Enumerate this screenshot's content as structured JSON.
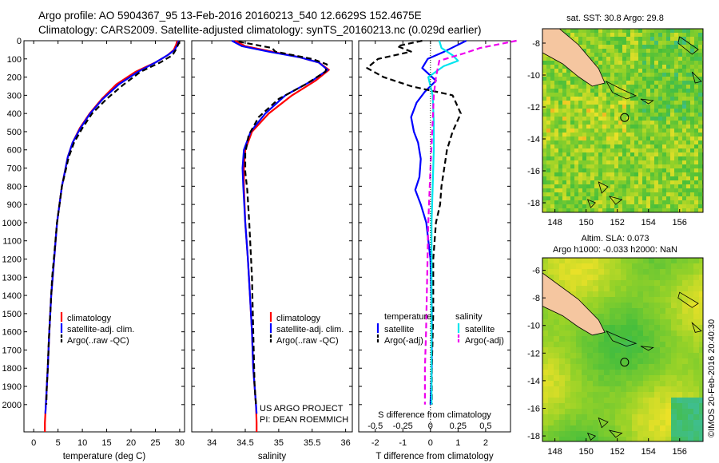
{
  "header": {
    "line1": "Argo profile: AO 5904367_95 13-Feb-2016 20160213_540 12.6629S 152.4675E",
    "line2": "Climatology: CARS2009. Satellite-adjusted climatology: synTS_20160213.nc (0.029d earlier)"
  },
  "colors": {
    "climatology": "#ff0000",
    "satellite": "#0000ff",
    "argo": "#000000",
    "sat_salinity": "#00e5ee",
    "argo_salinity": "#ee00ee",
    "land": "#f5c6a0",
    "ocean_base": "#44bb33"
  },
  "chart_data": [
    {
      "type": "line",
      "name": "temperature",
      "xlabel": "temperature (deg C)",
      "xlim": [
        -2,
        31
      ],
      "xticks": [
        0,
        5,
        10,
        15,
        20,
        25,
        30
      ],
      "xtick_labels": [
        "0",
        "5",
        "10",
        "15",
        "20",
        "25",
        "30"
      ],
      "ylim": [
        2150,
        0
      ],
      "yticks": [
        0,
        100,
        200,
        300,
        400,
        500,
        600,
        700,
        800,
        900,
        1000,
        1100,
        1200,
        1300,
        1400,
        1500,
        1600,
        1700,
        1800,
        1900,
        2000
      ],
      "ytick_labels": [
        "0",
        "100",
        "200",
        "300",
        "400",
        "500",
        "600",
        "700",
        "800",
        "900",
        "1000",
        "1100",
        "1200",
        "1300",
        "1400",
        "1500",
        "1600",
        "1700",
        "1800",
        "1900",
        "2000"
      ],
      "legend": [
        "climatology",
        "satellite-adj. clim.",
        "Argo(..raw -QC)"
      ],
      "series": [
        {
          "name": "climatology",
          "color": "#ff0000",
          "dash": false,
          "x": [
            29.5,
            29.3,
            28.8,
            27.5,
            25,
            21,
            17,
            14,
            11.5,
            9.5,
            8,
            7,
            6.4,
            5.8,
            4.8,
            4.2,
            3.6,
            3.2,
            2.9,
            2.7,
            2.5,
            2.4,
            2.3,
            2.3
          ],
          "depth": [
            0,
            20,
            50,
            80,
            120,
            170,
            240,
            320,
            400,
            480,
            560,
            640,
            720,
            800,
            1000,
            1200,
            1400,
            1600,
            1800,
            1900,
            2000,
            2050,
            2100,
            2150
          ]
        },
        {
          "name": "satellite-adj. clim.",
          "color": "#0000ff",
          "dash": false,
          "x": [
            29.8,
            29.6,
            29,
            27.5,
            25,
            21.5,
            17.5,
            14.2,
            11.6,
            9.6,
            8,
            7,
            6.4,
            5.8,
            4.8,
            4.2,
            3.6,
            3.2,
            2.9,
            2.7,
            2.5,
            2.4
          ],
          "depth": [
            0,
            20,
            50,
            80,
            120,
            170,
            240,
            320,
            400,
            480,
            560,
            640,
            720,
            800,
            1000,
            1200,
            1400,
            1600,
            1800,
            1900,
            2000,
            2050
          ]
        },
        {
          "name": "Argo(..raw -QC)",
          "color": "#000000",
          "dash": true,
          "x": [
            30,
            29.7,
            29.2,
            28.5,
            26,
            22,
            18.5,
            15,
            12,
            10,
            8.3,
            7.2,
            6.5,
            5.8,
            5.3,
            4.8,
            4.3,
            3.8,
            3.4,
            3.1,
            2.9,
            2.7,
            2.6
          ],
          "depth": [
            5,
            20,
            50,
            80,
            120,
            170,
            240,
            320,
            400,
            480,
            560,
            640,
            720,
            800,
            900,
            1000,
            1150,
            1300,
            1500,
            1650,
            1800,
            1900,
            2000
          ]
        }
      ]
    },
    {
      "type": "line",
      "name": "salinity",
      "xlabel": "salinity",
      "xlim": [
        33.7,
        36.1
      ],
      "xticks": [
        34,
        34.5,
        35,
        35.5,
        36
      ],
      "xtick_labels": [
        "34",
        "34.5",
        "35",
        "35.5",
        "36"
      ],
      "ylim": [
        2150,
        0
      ],
      "legend": [
        "climatology",
        "satellite-adj. clim.",
        "Argo(..raw -QC)"
      ],
      "annotation": [
        "US ARGO PROJECT",
        "PI: DEAN ROEMMICH"
      ],
      "series": [
        {
          "name": "climatology",
          "color": "#ff0000",
          "dash": false,
          "x": [
            34.35,
            34.5,
            34.9,
            35.3,
            35.6,
            35.75,
            35.55,
            35.2,
            34.85,
            34.6,
            34.5,
            34.48,
            34.48,
            34.5,
            34.54,
            34.57,
            34.6,
            34.62,
            34.64,
            34.66,
            34.67,
            34.67
          ],
          "depth": [
            0,
            30,
            60,
            90,
            120,
            160,
            220,
            300,
            400,
            500,
            600,
            700,
            800,
            1000,
            1200,
            1400,
            1600,
            1800,
            1900,
            2000,
            2100,
            2150
          ]
        },
        {
          "name": "satellite-adj. clim.",
          "color": "#0000ff",
          "dash": false,
          "x": [
            34.3,
            34.45,
            34.85,
            35.3,
            35.6,
            35.73,
            35.5,
            35.1,
            34.8,
            34.58,
            34.48,
            34.46,
            34.47,
            34.5,
            34.54,
            34.57,
            34.6,
            34.62,
            34.64,
            34.66,
            34.67
          ],
          "depth": [
            0,
            30,
            60,
            90,
            120,
            160,
            220,
            300,
            400,
            500,
            600,
            700,
            800,
            1000,
            1200,
            1400,
            1600,
            1800,
            1900,
            2000,
            2050
          ]
        },
        {
          "name": "Argo(..raw -QC)",
          "color": "#000000",
          "dash": true,
          "x": [
            34.4,
            34.9,
            34.95,
            35.5,
            35.72,
            35.7,
            35.4,
            35.0,
            34.7,
            34.55,
            34.5,
            34.5,
            34.53,
            34.56,
            34.6,
            34.62,
            34.64,
            34.66
          ],
          "depth": [
            5,
            40,
            60,
            100,
            130,
            170,
            240,
            320,
            420,
            520,
            620,
            720,
            820,
            1000,
            1300,
            1600,
            1900,
            2000
          ]
        }
      ]
    },
    {
      "type": "line",
      "name": "difference",
      "xlabel": "T difference from climatology",
      "x2label": "S difference from climatology",
      "xlim": [
        -2.6,
        2.9
      ],
      "xticks": [
        -2,
        -1,
        0,
        1,
        2
      ],
      "xtick_labels": [
        "-2",
        "-1",
        "0",
        "1",
        "2"
      ],
      "x2ticks": [
        -0.5,
        -0.25,
        0,
        0.25,
        0.5
      ],
      "x2tick_labels": [
        "-0.5",
        "-0.25",
        "0",
        "0.25",
        "0.5"
      ],
      "ylim": [
        2150,
        0
      ],
      "legend_temperature": [
        "temperature",
        "satellite",
        "Argo(-adj)"
      ],
      "legend_salinity": [
        "salinity",
        "satellite",
        "Argo(-adj)"
      ],
      "series": [
        {
          "name": "temperature satellite",
          "color": "#0000ff",
          "dash": false,
          "x": [
            1.3,
            0.9,
            0.5,
            -0.1,
            -0.3,
            0.2,
            -0.2,
            -0.5,
            -0.7,
            -0.6,
            -0.45,
            -0.35,
            -0.4,
            -0.55,
            -0.35,
            -0.15,
            0,
            0.05,
            0.05,
            0
          ],
          "depth": [
            0,
            30,
            60,
            100,
            150,
            220,
            280,
            340,
            420,
            500,
            560,
            650,
            750,
            820,
            900,
            1000,
            1200,
            1500,
            1800,
            2000
          ]
        },
        {
          "name": "temperature Argo(-adj)",
          "color": "#000000",
          "dash": true,
          "x": [
            -0.3,
            -1.2,
            -0.7,
            -1.9,
            -2.3,
            -1.7,
            -0.7,
            0.8,
            1.1,
            0.8,
            0.6,
            0.5,
            0.4,
            0.35,
            0.2,
            0.1,
            0.1,
            0.05,
            0.05
          ],
          "depth": [
            0,
            30,
            60,
            100,
            150,
            200,
            250,
            300,
            400,
            500,
            600,
            700,
            800,
            900,
            1000,
            1200,
            1500,
            1800,
            2000
          ]
        },
        {
          "name": "salinity satellite",
          "color": "#00e5ee",
          "dash": false,
          "x": [
            0.08,
            0.1,
            0.2,
            0.25,
            0.12,
            -0.02,
            0.02,
            0.03,
            0.03,
            0.02,
            0.01,
            0.01,
            0.01,
            0.01
          ],
          "depth": [
            0,
            40,
            80,
            110,
            140,
            200,
            300,
            450,
            600,
            800,
            1000,
            1400,
            1800,
            2000
          ]
        },
        {
          "name": "salinity Argo(-adj)",
          "color": "#ee00ee",
          "dash": true,
          "x": [
            0.78,
            0.45,
            0.3,
            0.08,
            0.07,
            0.05,
            0.03,
            0.02,
            0.0,
            -0.02,
            -0.03,
            -0.04,
            -0.05,
            -0.05
          ],
          "depth": [
            0,
            40,
            70,
            110,
            140,
            200,
            300,
            450,
            700,
            1000,
            1300,
            1600,
            1800,
            2000
          ]
        }
      ]
    },
    {
      "type": "heatmap",
      "name": "sst-map",
      "title": "sat. SST: 30.8 Argo: 29.8",
      "xticks": [
        148,
        150,
        152,
        154,
        156
      ],
      "xtick_labels": [
        "148",
        "150",
        "152",
        "154",
        "156"
      ],
      "yticks": [
        -8,
        -10,
        -12,
        -14,
        -16,
        -18
      ],
      "ytick_labels": [
        "-8",
        "-10",
        "-12",
        "-14",
        "-16",
        "-18"
      ],
      "xlim": [
        147.2,
        157.5
      ],
      "ylim": [
        -18.6,
        -7.1
      ],
      "argo_position": [
        152.47,
        -12.66
      ]
    },
    {
      "type": "heatmap",
      "name": "sla-map",
      "title_line1": "Altim. SLA: 0.073",
      "title_line2": "Argo h1000: -0.033 h2000: NaN",
      "xticks": [
        148,
        150,
        152,
        154,
        156
      ],
      "xtick_labels": [
        "148",
        "150",
        "152",
        "154",
        "156"
      ],
      "yticks": [
        -6,
        -8,
        -10,
        -12,
        -14,
        -16,
        -18
      ],
      "ytick_labels": [
        "-6",
        "-8",
        "-10",
        "-12",
        "-14",
        "-16",
        "-18"
      ],
      "xlim": [
        147.2,
        157.5
      ],
      "ylim": [
        -18.4,
        -5.1
      ],
      "argo_position": [
        152.47,
        -12.66
      ]
    }
  ],
  "footer": {
    "credit": "©IMOS 20-Feb-2016 20:40:30"
  }
}
